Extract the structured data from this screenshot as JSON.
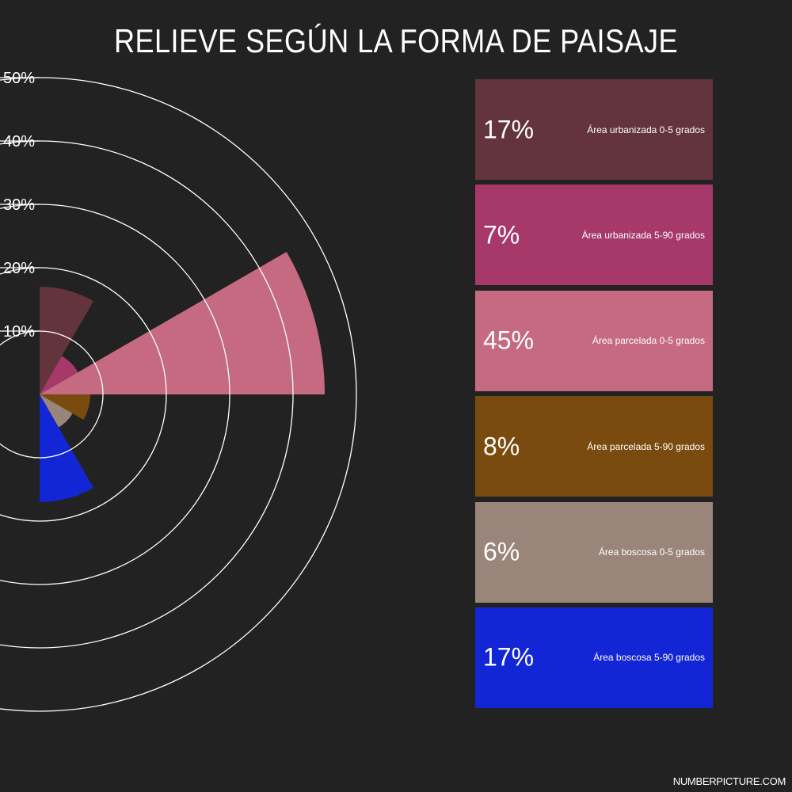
{
  "title": "RELIEVE SEGÚN LA FORMA DE PAISAJE",
  "watermark": "NUMBERPICTURE.COM",
  "chart_data": {
    "type": "polar-area",
    "rmax": 50,
    "ring_ticks": [
      10,
      20,
      30,
      40,
      50
    ],
    "tick_labels": [
      "10%",
      "20%",
      "30%",
      "40%",
      "50%"
    ],
    "grid": true,
    "legend": "right",
    "categories": [
      "Área urbanizada 0-5 grados",
      "Área urbanizada 5-90 grados",
      "Área parcelada 0-5 grados",
      "Área parcelada 5-90 grados",
      "Área boscosa 0-5 grados",
      "Área boscosa 5-90 grados"
    ],
    "values": [
      17,
      7,
      45,
      8,
      6,
      17
    ],
    "value_labels": [
      "17%",
      "7%",
      "45%",
      "8%",
      "6%",
      "17%"
    ],
    "colors": [
      "#63343c",
      "#a6386a",
      "#c56a80",
      "#7a4b0e",
      "#9a857a",
      "#1226d6"
    ]
  }
}
